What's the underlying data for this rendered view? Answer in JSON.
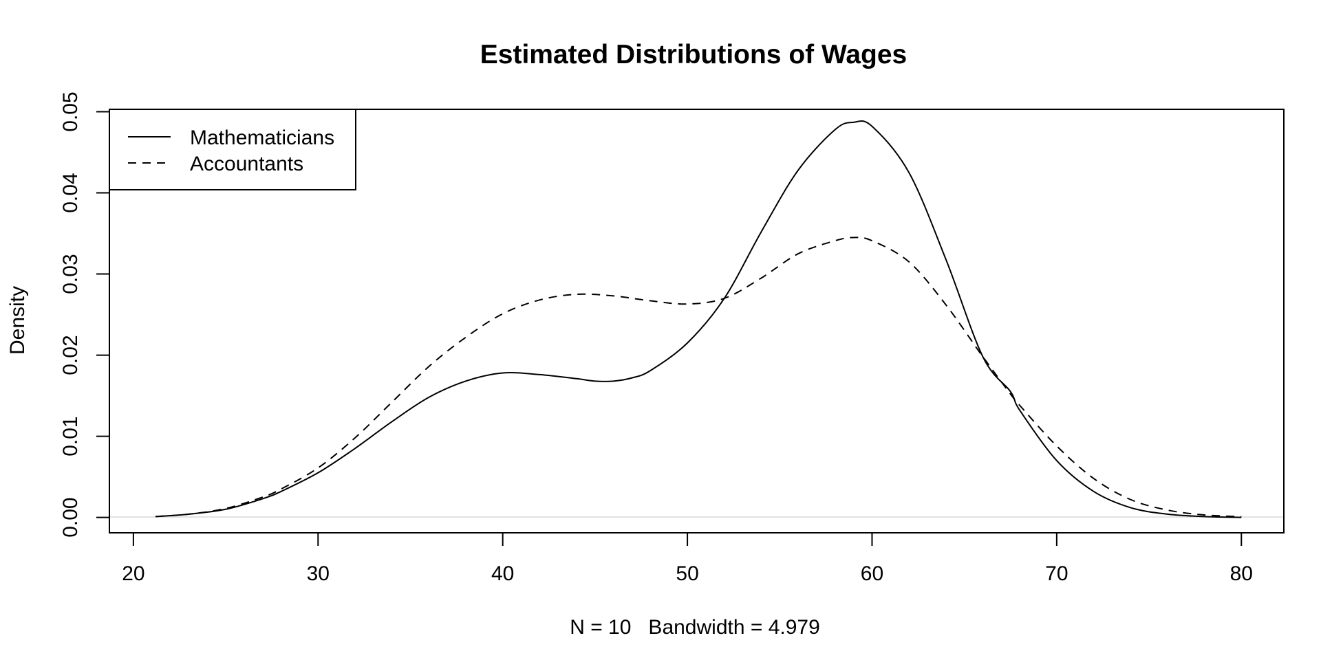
{
  "chart_data": {
    "type": "line",
    "title": "Estimated Distributions of Wages",
    "xlabel": "N = 10   Bandwidth = 4.979",
    "ylabel": "Density",
    "xlim": [
      18.7,
      82.3
    ],
    "ylim": [
      -0.0019,
      0.0503
    ],
    "x_ticks": [
      "20",
      "30",
      "40",
      "50",
      "60",
      "70",
      "80"
    ],
    "y_ticks": [
      "0.00",
      "0.01",
      "0.02",
      "0.03",
      "0.04",
      "0.05"
    ],
    "grid": false,
    "zero_line": true,
    "legend_position": "top-left",
    "series": [
      {
        "name": "Mathematicians",
        "line_style": "solid",
        "x": [
          21.2,
          23,
          25,
          27,
          28,
          30,
          32,
          34,
          36,
          38,
          40,
          42,
          44,
          45,
          46,
          47,
          48,
          50,
          52,
          54,
          56,
          58,
          59,
          60,
          62,
          64,
          66,
          67.5,
          68,
          70,
          72,
          74,
          76,
          78,
          80
        ],
        "y": [
          0.0001,
          0.0004,
          0.001,
          0.0023,
          0.0032,
          0.0055,
          0.0085,
          0.0118,
          0.0148,
          0.0168,
          0.0178,
          0.0176,
          0.0171,
          0.0168,
          0.0168,
          0.0172,
          0.0181,
          0.0215,
          0.027,
          0.0352,
          0.0428,
          0.0478,
          0.0487,
          0.0482,
          0.0425,
          0.0318,
          0.0198,
          0.0155,
          0.0132,
          0.007,
          0.0032,
          0.0012,
          0.0004,
          0.0001,
          0.0
        ]
      },
      {
        "name": "Accountants",
        "line_style": "dashed",
        "x": [
          21.2,
          23,
          25,
          27,
          28,
          30,
          32,
          34,
          36,
          38,
          40,
          42,
          44,
          46,
          48,
          50,
          52,
          54,
          56,
          58,
          59,
          60,
          62,
          64,
          66,
          67.5,
          68,
          70,
          72,
          74,
          76,
          78,
          80
        ],
        "y": [
          0.0001,
          0.0004,
          0.0011,
          0.0025,
          0.0035,
          0.0061,
          0.0098,
          0.0142,
          0.0186,
          0.0222,
          0.0251,
          0.0268,
          0.0275,
          0.0273,
          0.0267,
          0.0263,
          0.027,
          0.0295,
          0.0325,
          0.0341,
          0.0345,
          0.0341,
          0.0315,
          0.0262,
          0.0198,
          0.0152,
          0.0138,
          0.0088,
          0.0048,
          0.0022,
          0.0009,
          0.0003,
          0.0001
        ]
      }
    ]
  }
}
